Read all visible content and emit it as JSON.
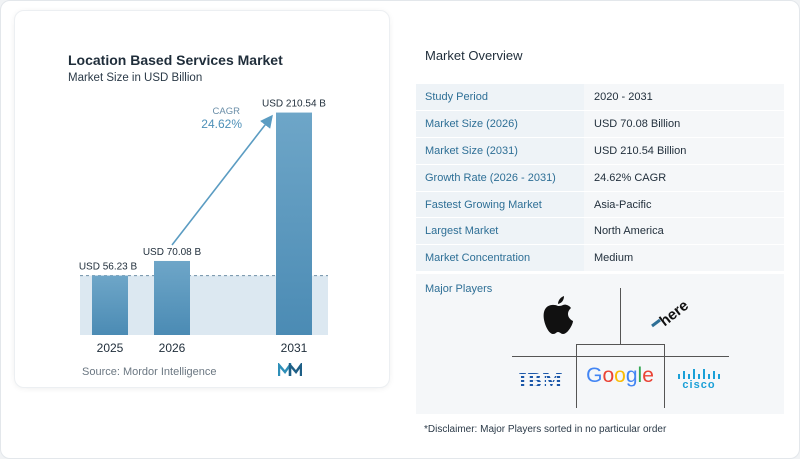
{
  "chart_data": {
    "type": "bar",
    "title": "Location Based Services Market",
    "subtitle": "Market Size in USD Billion",
    "categories": [
      "2025",
      "2026",
      "2031"
    ],
    "values": [
      56.23,
      70.08,
      210.54
    ],
    "data_labels": [
      "USD 56.23 B",
      "USD 70.08 B",
      "USD 210.54 B"
    ],
    "annotation": {
      "label": "CAGR",
      "value": "24.62%"
    },
    "ylim": [
      0,
      230
    ],
    "grid": false,
    "colors": {
      "bar_top": "#6ea6c8",
      "bar_bottom": "#4b8bb4",
      "band": "#dce8f1",
      "arrow": "#5b9cc2"
    }
  },
  "source": "Source:  Mordor Intelligence",
  "overview": {
    "title": "Market Overview",
    "rows": [
      {
        "key": "Study Period",
        "value": "2020 - 2031"
      },
      {
        "key": "Market Size (2026)",
        "value": "USD 70.08 Billion"
      },
      {
        "key": "Market Size (2031)",
        "value": "USD 210.54 Billion"
      },
      {
        "key": "Growth Rate (2026 - 2031)",
        "value": "24.62% CAGR"
      },
      {
        "key": "Fastest Growing Market",
        "value": "Asia-Pacific"
      },
      {
        "key": "Largest Market",
        "value": "North America"
      },
      {
        "key": "Market Concentration",
        "value": "Medium"
      }
    ]
  },
  "players": {
    "title": "Major Players",
    "logos": [
      "apple-logo",
      "here-logo",
      "ibm-logo",
      "google-logo",
      "cisco-logo"
    ],
    "ibm_text": "IBM",
    "google_text": "Google",
    "cisco_text": "cisco",
    "here_text": "here"
  },
  "disclaimer": "*Disclaimer: Major Players sorted in no particular order"
}
